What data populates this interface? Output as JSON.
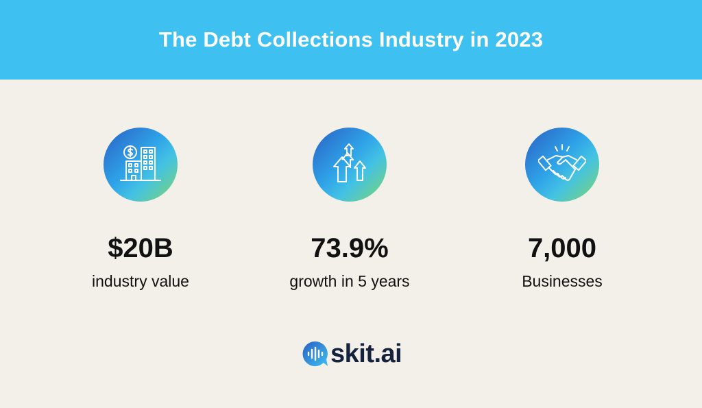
{
  "header": {
    "title": "The Debt Collections Industry in 2023"
  },
  "stats": [
    {
      "icon": "building-dollar-icon",
      "value": "$20B",
      "label": "industry value"
    },
    {
      "icon": "growth-arrows-icon",
      "value": "73.9%",
      "label": "growth in 5 years"
    },
    {
      "icon": "handshake-icon",
      "value": "7,000",
      "label": "Businesses"
    }
  ],
  "logo": {
    "text": "skit.ai",
    "icon": "skit-logo-icon"
  },
  "colors": {
    "header_bg": "#3ec0f0",
    "page_bg": "#f2f0e8",
    "icon_gradient_start": "#2a5fc4",
    "icon_gradient_end": "#7fd56a",
    "logo_text": "#15223e"
  }
}
